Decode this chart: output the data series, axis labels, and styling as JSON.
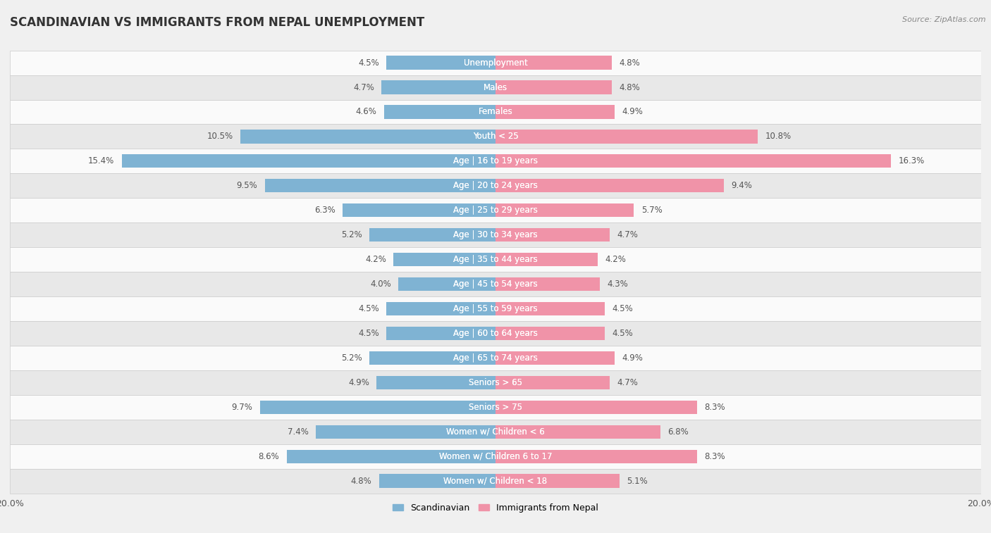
{
  "title": "SCANDINAVIAN VS IMMIGRANTS FROM NEPAL UNEMPLOYMENT",
  "source": "Source: ZipAtlas.com",
  "categories": [
    "Unemployment",
    "Males",
    "Females",
    "Youth < 25",
    "Age | 16 to 19 years",
    "Age | 20 to 24 years",
    "Age | 25 to 29 years",
    "Age | 30 to 34 years",
    "Age | 35 to 44 years",
    "Age | 45 to 54 years",
    "Age | 55 to 59 years",
    "Age | 60 to 64 years",
    "Age | 65 to 74 years",
    "Seniors > 65",
    "Seniors > 75",
    "Women w/ Children < 6",
    "Women w/ Children 6 to 17",
    "Women w/ Children < 18"
  ],
  "scandinavian": [
    4.5,
    4.7,
    4.6,
    10.5,
    15.4,
    9.5,
    6.3,
    5.2,
    4.2,
    4.0,
    4.5,
    4.5,
    5.2,
    4.9,
    9.7,
    7.4,
    8.6,
    4.8
  ],
  "nepal": [
    4.8,
    4.8,
    4.9,
    10.8,
    16.3,
    9.4,
    5.7,
    4.7,
    4.2,
    4.3,
    4.5,
    4.5,
    4.9,
    4.7,
    8.3,
    6.8,
    8.3,
    5.1
  ],
  "scandinavian_color": "#7fb3d3",
  "nepal_color": "#f093a8",
  "bar_height": 0.55,
  "xlim": 20.0,
  "bg_color": "#f0f0f0",
  "row_light_color": "#fafafa",
  "row_dark_color": "#e8e8e8",
  "text_color": "#555555",
  "legend_scand": "Scandinavian",
  "legend_nepal": "Immigrants from Nepal",
  "label_fontsize": 8.5,
  "title_fontsize": 12,
  "source_fontsize": 8
}
